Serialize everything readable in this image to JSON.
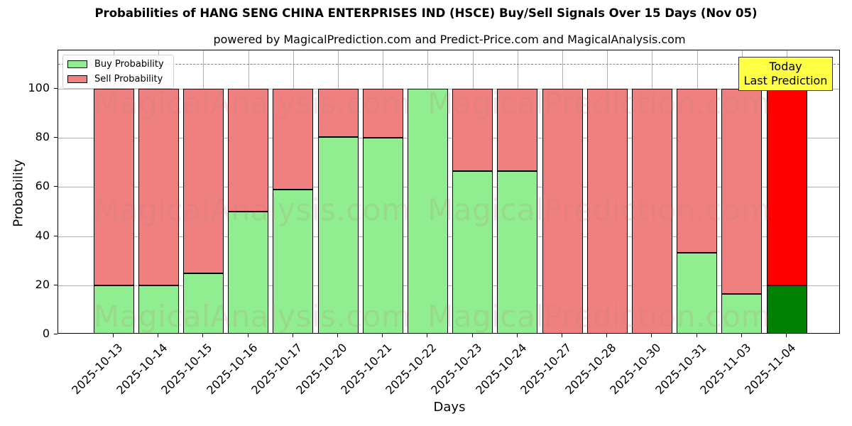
{
  "header": {
    "title": "Probabilities of HANG SENG CHINA ENTERPRISES IND (HSCE) Buy/Sell Signals Over 15 Days (Nov 05)",
    "subtitle": "powered by MagicalPrediction.com and Predict-Price.com and MagicalAnalysis.com"
  },
  "legend": {
    "buy_label": "Buy Probability",
    "sell_label": "Sell Probability"
  },
  "annotation": {
    "line1": "Today",
    "line2": "Last Prediction"
  },
  "watermarks": [
    "MagicalAnalysis.com",
    "MagicalPrediction.com"
  ],
  "axes": {
    "xlabel": "Days",
    "ylabel": "Probability",
    "yticks": [
      "0",
      "20",
      "40",
      "60",
      "80",
      "100"
    ]
  },
  "colors": {
    "buy": "#90ee90",
    "sell": "#f08080",
    "buy_today": "#008000",
    "sell_today": "#ff0000",
    "annotation_bg": "#ffff44",
    "reference_line": "#808080"
  },
  "chart_data": {
    "type": "bar",
    "stacked": true,
    "title": "Probabilities of HANG SENG CHINA ENTERPRISES IND (HSCE) Buy/Sell Signals Over 15 Days (Nov 05)",
    "subtitle": "powered by MagicalPrediction.com and Predict-Price.com and MagicalAnalysis.com",
    "xlabel": "Days",
    "ylabel": "Probability",
    "ylim": [
      0,
      115
    ],
    "yticks": [
      0,
      20,
      40,
      60,
      80,
      100
    ],
    "reference_line": 110,
    "grid": true,
    "legend_position": "upper left",
    "categories": [
      "2025-10-13",
      "2025-10-14",
      "2025-10-15",
      "2025-10-16",
      "2025-10-17",
      "2025-10-20",
      "2025-10-21",
      "2025-10-22",
      "2025-10-23",
      "2025-10-24",
      "2025-10-27",
      "2025-10-28",
      "2025-10-30",
      "2025-10-31",
      "2025-11-03",
      "2025-11-04"
    ],
    "series": [
      {
        "name": "Buy Probability",
        "values": [
          20,
          20,
          25,
          50,
          59,
          80.3,
          80,
          100,
          66.5,
          66.5,
          0,
          0,
          0,
          33.2,
          16.5,
          20
        ]
      },
      {
        "name": "Sell Probability",
        "values": [
          80,
          80,
          75,
          50,
          41,
          19.7,
          20,
          0,
          33.5,
          33.5,
          100,
          100,
          100,
          66.8,
          83.5,
          80
        ]
      }
    ],
    "annotations": [
      {
        "text": "Today\nLast Prediction",
        "x": "2025-11-04"
      }
    ]
  }
}
